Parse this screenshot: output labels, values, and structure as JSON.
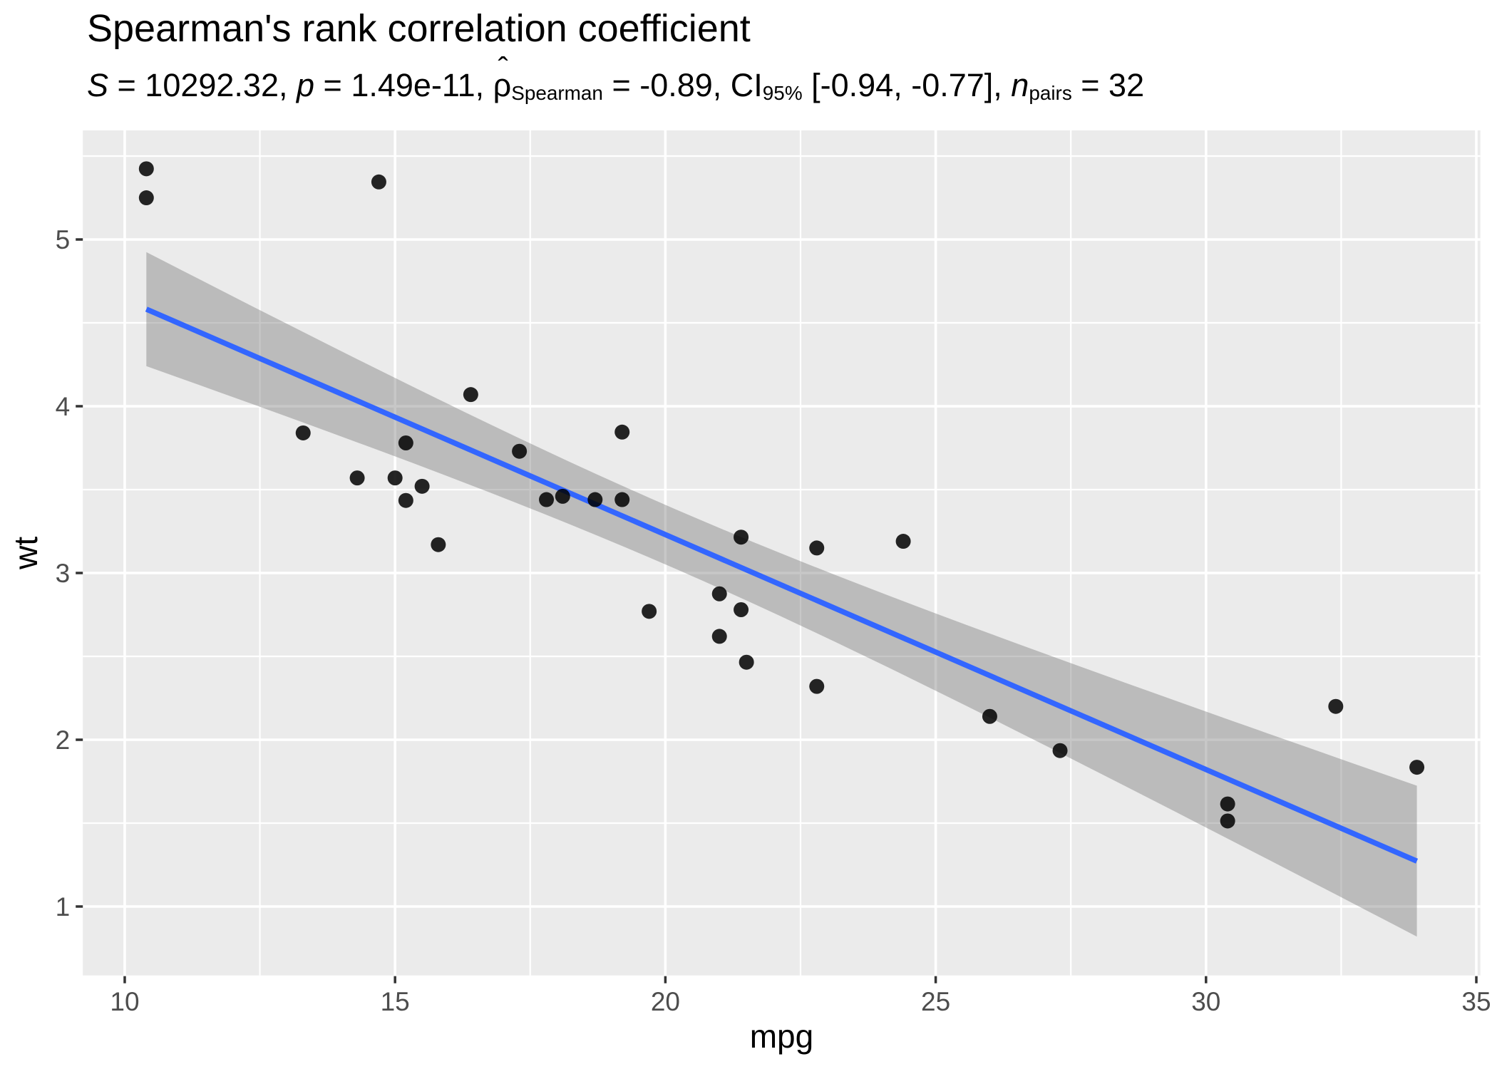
{
  "plot": {
    "title": "Spearman's rank correlation coefficient",
    "subtitle_segments": [
      {
        "text": "S",
        "style": "italic"
      },
      {
        "text": " = 10292.32, ",
        "style": "plain"
      },
      {
        "text": "p",
        "style": "italic"
      },
      {
        "text": " = 1.49e-11, ",
        "style": "plain"
      },
      {
        "text": "ρ",
        "style": "hat"
      },
      {
        "text": "Spearman",
        "style": "sub"
      },
      {
        "text": " = -0.89, CI",
        "style": "plain"
      },
      {
        "text": "95%",
        "style": "sub"
      },
      {
        "text": " [-0.94, -0.77], ",
        "style": "plain"
      },
      {
        "text": "n",
        "style": "italic"
      },
      {
        "text": "pairs",
        "style": "sub"
      },
      {
        "text": " = 32",
        "style": "plain"
      }
    ],
    "colors": {
      "panel_background": "#EBEBEB",
      "gridline": "#FFFFFF",
      "regression_line": "#3366FF",
      "ci_ribbon": "rgba(115,115,115,0.40)",
      "point": "#000000",
      "tick_mark": "#333333",
      "tick_label": "#4D4D4D",
      "axis_title": "#000000"
    }
  },
  "chart_data": {
    "type": "scatter",
    "title": "Spearman's rank correlation coefficient",
    "subtitle": "S = 10292.32, p = 1.49e-11, rho-hat_Spearman = -0.89, CI_95% [-0.94, -0.77], n_pairs = 32",
    "xlabel": "mpg",
    "ylabel": "wt",
    "xlim": [
      9.225,
      35.075
    ],
    "ylim": [
      0.5867,
      5.654
    ],
    "x_major_ticks": [
      10,
      15,
      20,
      25,
      30,
      35
    ],
    "x_minor_ticks": [
      12.5,
      17.5,
      22.5,
      27.5,
      32.5
    ],
    "y_major_ticks": [
      1,
      2,
      3,
      4,
      5
    ],
    "y_minor_ticks": [
      1.5,
      2.5,
      3.5,
      4.5,
      5.5
    ],
    "grid": true,
    "legend": "none",
    "points": [
      [
        21.0,
        2.62
      ],
      [
        21.0,
        2.875
      ],
      [
        22.8,
        2.32
      ],
      [
        21.4,
        3.215
      ],
      [
        18.7,
        3.44
      ],
      [
        18.1,
        3.46
      ],
      [
        14.3,
        3.57
      ],
      [
        24.4,
        3.19
      ],
      [
        22.8,
        3.15
      ],
      [
        19.2,
        3.44
      ],
      [
        17.8,
        3.44
      ],
      [
        16.4,
        4.07
      ],
      [
        17.3,
        3.73
      ],
      [
        15.2,
        3.78
      ],
      [
        10.4,
        5.25
      ],
      [
        10.4,
        5.424
      ],
      [
        14.7,
        5.345
      ],
      [
        32.4,
        2.2
      ],
      [
        30.4,
        1.615
      ],
      [
        33.9,
        1.835
      ],
      [
        21.5,
        2.465
      ],
      [
        15.5,
        3.52
      ],
      [
        15.2,
        3.435
      ],
      [
        13.3,
        3.84
      ],
      [
        19.2,
        3.845
      ],
      [
        27.3,
        1.935
      ],
      [
        26.0,
        2.14
      ],
      [
        30.4,
        1.513
      ],
      [
        15.8,
        3.17
      ],
      [
        19.7,
        2.77
      ],
      [
        15.0,
        3.57
      ],
      [
        21.4,
        2.78
      ]
    ],
    "regression": {
      "type": "linear",
      "intercept": 6.04726,
      "slope": -0.14086,
      "x_start": 10.4,
      "x_end": 33.9
    },
    "ci_band": {
      "level": 0.95,
      "t_crit": 2.0423,
      "resid_se": 0.49454,
      "n": 32,
      "mean_x": 20.090625,
      "sxx": 1126.0472
    },
    "stats": {
      "S": "10292.32",
      "p": "1.49e-11",
      "rho_spearman": "-0.89",
      "ci_95": "[-0.94, -0.77]",
      "n_pairs": "32"
    }
  }
}
